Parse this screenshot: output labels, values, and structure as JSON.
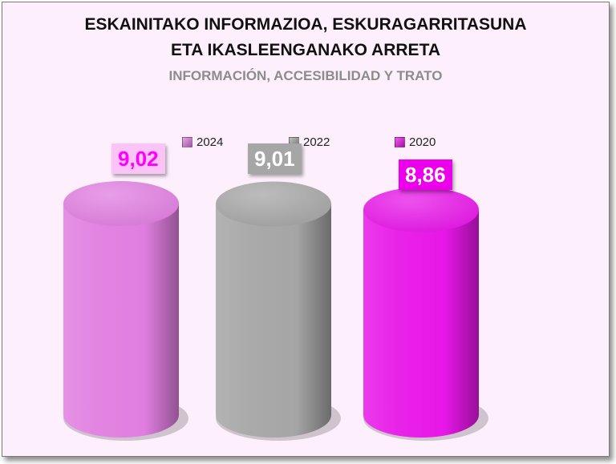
{
  "title_line1": "ESKAINITAKO INFORMAZIOA, ESKURAGARRITASUNA",
  "title_line2": "ETA IKASLEENGANAKO ARRETA",
  "subtitle": "INFORMACIÓN, ACCESIBILIDAD Y TRATO",
  "chart_data": {
    "type": "bar",
    "categories": [
      "2024",
      "2022",
      "2020"
    ],
    "series": [
      {
        "values": [
          9.02,
          9.01,
          8.86
        ]
      }
    ],
    "data_labels": [
      "9,02",
      "9,01",
      "8,86"
    ],
    "legend": [
      "2024",
      "2022",
      "2020"
    ],
    "legend_placement": "top",
    "colors": [
      "#e07ee0",
      "#a5a5a5",
      "#e817e8"
    ],
    "label_colors": [
      "#ff00ff",
      "#ffffff",
      "#ffffff"
    ],
    "label_backgrounds": [
      "#fcc4f6",
      "#a6a6a6",
      "#ec00ec"
    ],
    "grid": false,
    "ylim": [
      0,
      10
    ]
  }
}
